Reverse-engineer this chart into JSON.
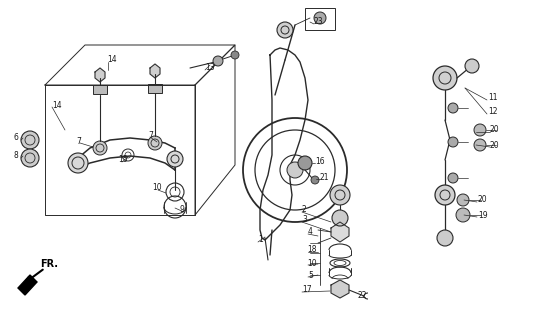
{
  "bg_color": "#ffffff",
  "line_color": "#2a2a2a",
  "text_color": "#1a1a1a",
  "fig_width": 5.44,
  "fig_height": 3.2,
  "dpi": 100
}
